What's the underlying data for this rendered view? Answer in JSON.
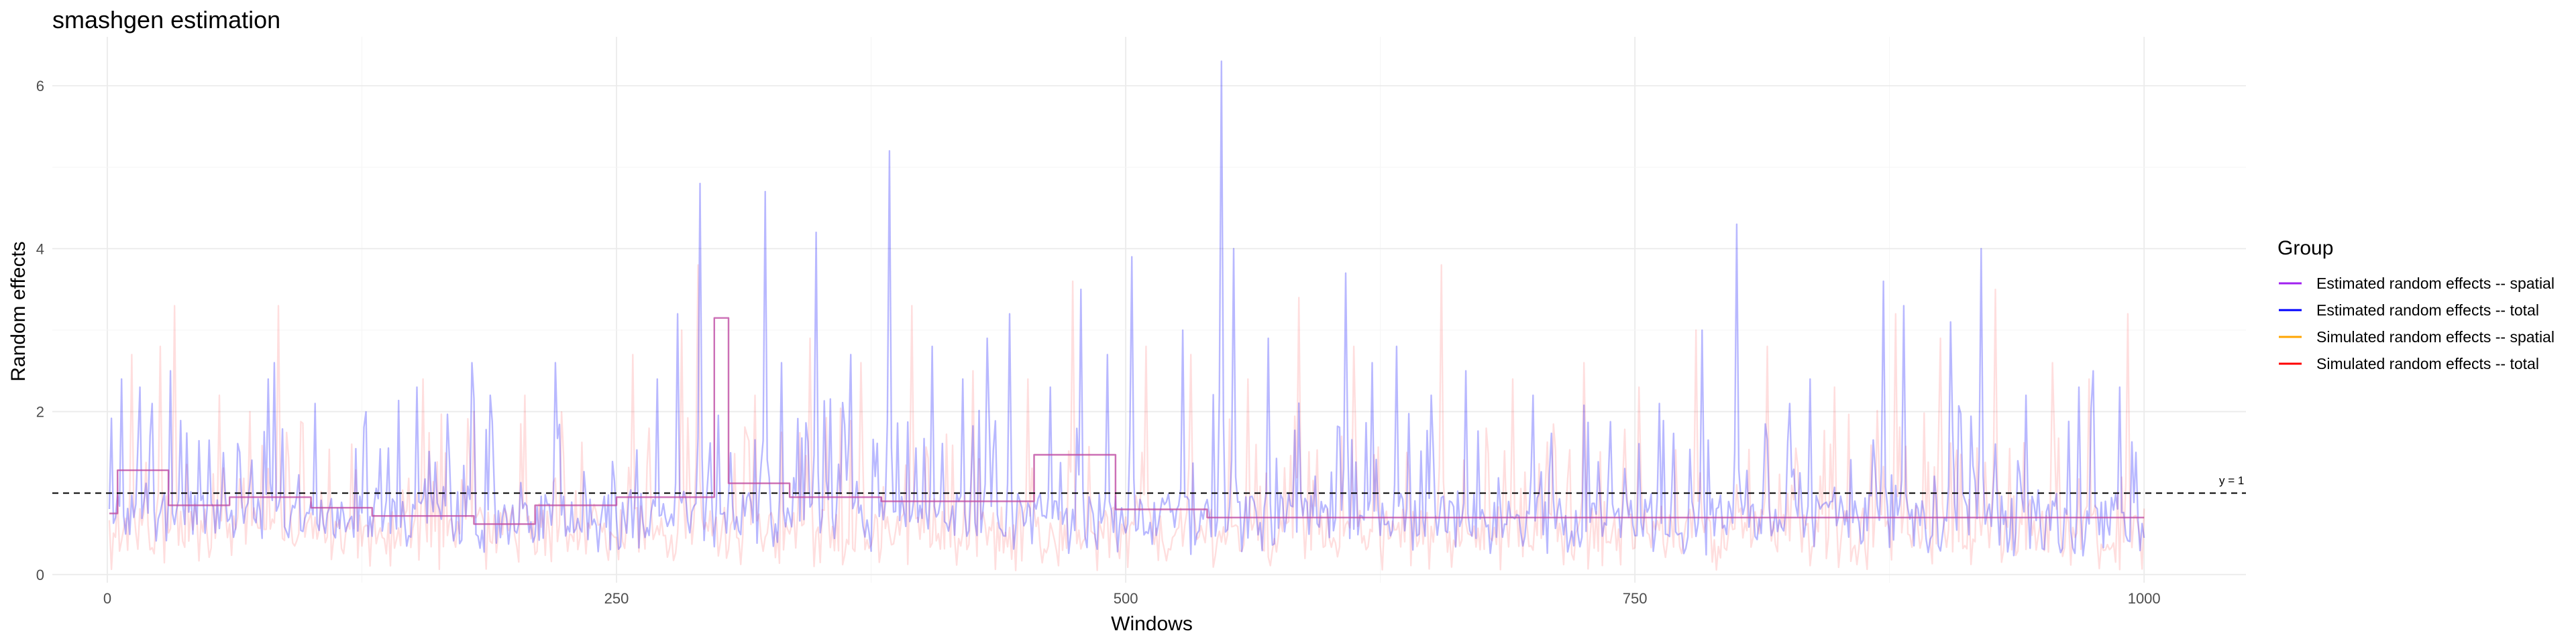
{
  "chart_data": {
    "type": "line",
    "title": "smashgen estimation",
    "xlabel": "Windows",
    "ylabel": "Random effects",
    "xlim": [
      -27,
      1050
    ],
    "ylim": [
      -0.1,
      6.6
    ],
    "xticks": [
      0,
      250,
      500,
      750,
      1000
    ],
    "yticks": [
      0,
      2,
      4,
      6
    ],
    "grid": true,
    "legend_position": "right",
    "legend_title": "Group",
    "reference_line": {
      "y": 1,
      "label": "y = 1",
      "style": "dashed"
    },
    "n_windows": 1000,
    "series": [
      {
        "name": "Estimated random effects -- spatial",
        "color": "#a020f0",
        "style": "piecewise-constant",
        "segments": [
          {
            "x0": 1,
            "x1": 5,
            "y": 0.75
          },
          {
            "x0": 5,
            "x1": 30,
            "y": 1.28
          },
          {
            "x0": 30,
            "x1": 60,
            "y": 0.85
          },
          {
            "x0": 60,
            "x1": 100,
            "y": 0.95
          },
          {
            "x0": 100,
            "x1": 130,
            "y": 0.82
          },
          {
            "x0": 130,
            "x1": 180,
            "y": 0.72
          },
          {
            "x0": 180,
            "x1": 210,
            "y": 0.62
          },
          {
            "x0": 210,
            "x1": 250,
            "y": 0.85
          },
          {
            "x0": 250,
            "x1": 298,
            "y": 0.95
          },
          {
            "x0": 298,
            "x1": 305,
            "y": 3.15
          },
          {
            "x0": 305,
            "x1": 335,
            "y": 1.12
          },
          {
            "x0": 335,
            "x1": 380,
            "y": 0.95
          },
          {
            "x0": 380,
            "x1": 455,
            "y": 0.9
          },
          {
            "x0": 455,
            "x1": 495,
            "y": 1.47
          },
          {
            "x0": 495,
            "x1": 540,
            "y": 0.8
          },
          {
            "x0": 540,
            "x1": 1000,
            "y": 0.7
          }
        ]
      },
      {
        "name": "Estimated random effects -- total",
        "color": "#0000ff",
        "style": "fluctuating",
        "baseline": 0.72,
        "peaks": [
          {
            "x": 7,
            "y": 2.4
          },
          {
            "x": 16,
            "y": 2.3
          },
          {
            "x": 22,
            "y": 2.1
          },
          {
            "x": 31,
            "y": 2.5
          },
          {
            "x": 79,
            "y": 2.4
          },
          {
            "x": 82,
            "y": 2.6
          },
          {
            "x": 102,
            "y": 2.1
          },
          {
            "x": 152,
            "y": 2.3
          },
          {
            "x": 179,
            "y": 2.6
          },
          {
            "x": 188,
            "y": 2.2
          },
          {
            "x": 220,
            "y": 2.6
          },
          {
            "x": 270,
            "y": 2.4
          },
          {
            "x": 280,
            "y": 3.2
          },
          {
            "x": 291,
            "y": 4.8
          },
          {
            "x": 323,
            "y": 4.7
          },
          {
            "x": 331,
            "y": 2.6
          },
          {
            "x": 348,
            "y": 4.2
          },
          {
            "x": 365,
            "y": 2.7
          },
          {
            "x": 384,
            "y": 5.2
          },
          {
            "x": 405,
            "y": 2.8
          },
          {
            "x": 420,
            "y": 2.4
          },
          {
            "x": 432,
            "y": 2.9
          },
          {
            "x": 443,
            "y": 3.2
          },
          {
            "x": 463,
            "y": 2.3
          },
          {
            "x": 478,
            "y": 3.5
          },
          {
            "x": 491,
            "y": 2.7
          },
          {
            "x": 503,
            "y": 3.9
          },
          {
            "x": 528,
            "y": 3.0
          },
          {
            "x": 547,
            "y": 6.3
          },
          {
            "x": 553,
            "y": 4.0
          },
          {
            "x": 570,
            "y": 2.9
          },
          {
            "x": 608,
            "y": 3.7
          },
          {
            "x": 621,
            "y": 2.6
          },
          {
            "x": 633,
            "y": 2.8
          },
          {
            "x": 650,
            "y": 2.2
          },
          {
            "x": 667,
            "y": 2.5
          },
          {
            "x": 700,
            "y": 2.2
          },
          {
            "x": 762,
            "y": 2.1
          },
          {
            "x": 783,
            "y": 3.0
          },
          {
            "x": 800,
            "y": 4.3
          },
          {
            "x": 826,
            "y": 2.1
          },
          {
            "x": 836,
            "y": 2.4
          },
          {
            "x": 872,
            "y": 3.6
          },
          {
            "x": 882,
            "y": 3.3
          },
          {
            "x": 905,
            "y": 3.1
          },
          {
            "x": 920,
            "y": 4.0
          },
          {
            "x": 942,
            "y": 2.2
          },
          {
            "x": 968,
            "y": 2.3
          },
          {
            "x": 975,
            "y": 2.5
          },
          {
            "x": 988,
            "y": 2.3
          },
          {
            "x": 996,
            "y": 1.5
          }
        ]
      },
      {
        "name": "Simulated random effects -- spatial",
        "color": "#ffa500",
        "style": "piecewise-constant",
        "segments": [
          {
            "x0": 1,
            "x1": 5,
            "y": 0.75
          },
          {
            "x0": 5,
            "x1": 30,
            "y": 1.28
          },
          {
            "x0": 30,
            "x1": 60,
            "y": 0.85
          },
          {
            "x0": 60,
            "x1": 100,
            "y": 0.95
          },
          {
            "x0": 100,
            "x1": 130,
            "y": 0.82
          },
          {
            "x0": 130,
            "x1": 180,
            "y": 0.72
          },
          {
            "x0": 180,
            "x1": 210,
            "y": 0.62
          },
          {
            "x0": 210,
            "x1": 250,
            "y": 0.85
          },
          {
            "x0": 250,
            "x1": 298,
            "y": 0.95
          },
          {
            "x0": 298,
            "x1": 305,
            "y": 3.15
          },
          {
            "x0": 305,
            "x1": 335,
            "y": 1.12
          },
          {
            "x0": 335,
            "x1": 380,
            "y": 0.95
          },
          {
            "x0": 380,
            "x1": 455,
            "y": 0.9
          },
          {
            "x0": 455,
            "x1": 495,
            "y": 1.47
          },
          {
            "x0": 495,
            "x1": 540,
            "y": 0.8
          },
          {
            "x0": 540,
            "x1": 1000,
            "y": 0.7
          }
        ]
      },
      {
        "name": "Simulated random effects -- total",
        "color": "#ff0000",
        "style": "fluctuating",
        "baseline": 0.55,
        "peaks": [
          {
            "x": 12,
            "y": 2.7
          },
          {
            "x": 26,
            "y": 2.8
          },
          {
            "x": 33,
            "y": 3.3
          },
          {
            "x": 55,
            "y": 2.2
          },
          {
            "x": 70,
            "y": 2.0
          },
          {
            "x": 84,
            "y": 3.3
          },
          {
            "x": 120,
            "y": 1.6
          },
          {
            "x": 155,
            "y": 2.4
          },
          {
            "x": 180,
            "y": 2.0
          },
          {
            "x": 205,
            "y": 2.2
          },
          {
            "x": 258,
            "y": 2.7
          },
          {
            "x": 282,
            "y": 3.0
          },
          {
            "x": 290,
            "y": 3.8
          },
          {
            "x": 318,
            "y": 2.2
          },
          {
            "x": 345,
            "y": 2.9
          },
          {
            "x": 370,
            "y": 2.6
          },
          {
            "x": 395,
            "y": 3.3
          },
          {
            "x": 425,
            "y": 2.5
          },
          {
            "x": 452,
            "y": 2.4
          },
          {
            "x": 474,
            "y": 3.6
          },
          {
            "x": 510,
            "y": 2.8
          },
          {
            "x": 532,
            "y": 2.7
          },
          {
            "x": 560,
            "y": 2.4
          },
          {
            "x": 585,
            "y": 3.4
          },
          {
            "x": 612,
            "y": 2.8
          },
          {
            "x": 655,
            "y": 3.8
          },
          {
            "x": 690,
            "y": 2.4
          },
          {
            "x": 725,
            "y": 2.6
          },
          {
            "x": 752,
            "y": 2.3
          },
          {
            "x": 780,
            "y": 3.0
          },
          {
            "x": 815,
            "y": 2.8
          },
          {
            "x": 848,
            "y": 2.3
          },
          {
            "x": 878,
            "y": 3.2
          },
          {
            "x": 900,
            "y": 2.9
          },
          {
            "x": 927,
            "y": 3.5
          },
          {
            "x": 955,
            "y": 2.6
          },
          {
            "x": 973,
            "y": 2.4
          },
          {
            "x": 992,
            "y": 3.2
          }
        ]
      }
    ]
  }
}
